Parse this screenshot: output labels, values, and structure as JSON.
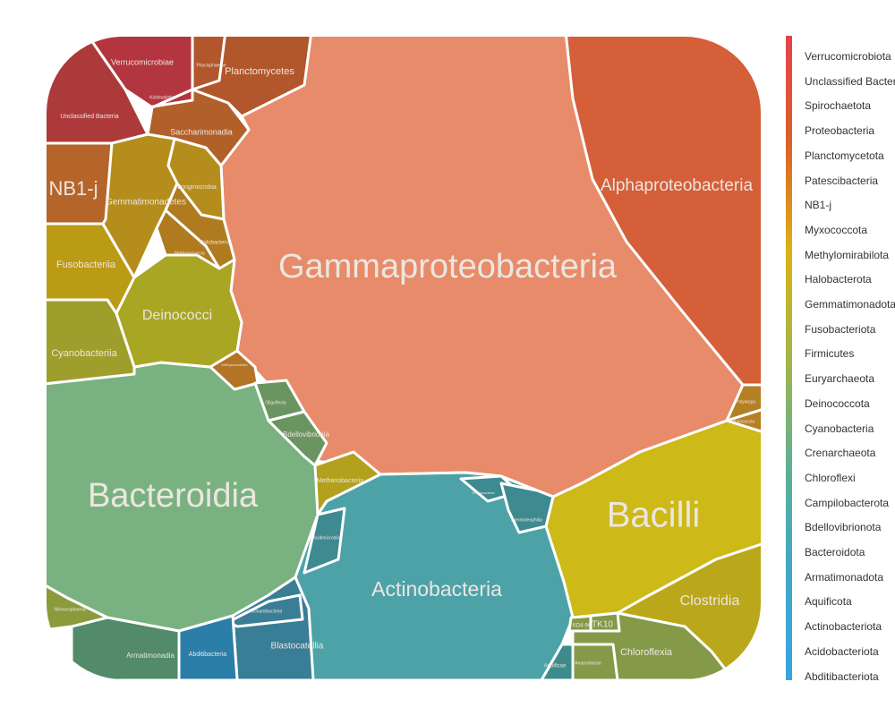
{
  "chart_data": {
    "type": "treemap",
    "hierarchy": "phylum > class",
    "clip_shape": "rounded-rectangle",
    "classes": [
      {
        "name": "Gammaproteobacteria",
        "phylum": "Proteobacteria",
        "color": "#e88b6a"
      },
      {
        "name": "Alphaproteobacteria",
        "phylum": "Proteobacteria",
        "color": "#d45f38"
      },
      {
        "name": "Bacteroidia",
        "phylum": "Bacteroidota",
        "color": "#79b280"
      },
      {
        "name": "Bacilli",
        "phylum": "Firmicutes",
        "color": "#cdb917"
      },
      {
        "name": "Clostridia",
        "phylum": "Firmicutes",
        "color": "#bba71a"
      },
      {
        "name": "Actinobacteria",
        "phylum": "Actinobacteriota",
        "color": "#4da2a8"
      },
      {
        "name": "Deinococci",
        "phylum": "Deinococcota",
        "color": "#a8a622"
      },
      {
        "name": "Cyanobacteriia",
        "phylum": "Cyanobacteria",
        "color": "#9e9e2c"
      },
      {
        "name": "Fusobacteriia",
        "phylum": "Fusobacteriota",
        "color": "#bc9b14"
      },
      {
        "name": "NB1-j",
        "phylum": "NB1-j",
        "color": "#b5642a"
      },
      {
        "name": "Gemmatimonadetes",
        "phylum": "Gemmatimonadota",
        "color": "#b48d1c"
      },
      {
        "name": "Longimicrobia",
        "phylum": "Gemmatimonadota",
        "color": "#b48d1c"
      },
      {
        "name": "Halobacteria",
        "phylum": "Halobacterota",
        "color": "#b07a1f"
      },
      {
        "name": "Methanococcia",
        "phylum": "Halobacterota",
        "color": "#b07a1f"
      },
      {
        "name": "Methylomirabilia",
        "phylum": "Methylomirabilota",
        "color": "#b47325"
      },
      {
        "name": "Saccharimonadia",
        "phylum": "Patescibacteria",
        "color": "#b2602a"
      },
      {
        "name": "Planctomycetes",
        "phylum": "Planctomycetota",
        "color": "#b1572b"
      },
      {
        "name": "Phycisphaerae",
        "phylum": "Planctomycetota",
        "color": "#b1572b"
      },
      {
        "name": "Verrucomicrobiae",
        "phylum": "Verrucomicrobiota",
        "color": "#b23540"
      },
      {
        "name": "Kiritimatiellae",
        "phylum": "Verrucomicrobiota",
        "color": "#b23540"
      },
      {
        "name": "Unclassified Bacteria",
        "phylum": "Unclassified Bacteria",
        "color": "#ad3a3a"
      },
      {
        "name": "Oligoflexia",
        "phylum": "Bdellovibrionota",
        "color": "#6a9560"
      },
      {
        "name": "Bdellovibrionia",
        "phylum": "Bdellovibrionota",
        "color": "#6a9560"
      },
      {
        "name": "Methanobacteria",
        "phylum": "Euryarchaeota",
        "color": "#b3a11e"
      },
      {
        "name": "Polyangia",
        "phylum": "Myxococcota",
        "color": "#b57f25"
      },
      {
        "name": "Myxococcia",
        "phylum": "Myxococcota",
        "color": "#b57f25"
      },
      {
        "name": "Rubrobacteria",
        "phylum": "Actinobacteriota",
        "color": "#3d8a91"
      },
      {
        "name": "Thermoleophilia",
        "phylum": "Actinobacteriota",
        "color": "#3d8a91"
      },
      {
        "name": "Acidimicrobiia",
        "phylum": "Actinobacteriota",
        "color": "#3d8a91"
      },
      {
        "name": "Blastocatellia",
        "phylum": "Acidobacteriota",
        "color": "#3a7d96"
      },
      {
        "name": "Vicinamibacteria",
        "phylum": "Acidobacteriota",
        "color": "#3a7d96"
      },
      {
        "name": "Abditibacteria",
        "phylum": "Abditibacteriota",
        "color": "#2b7ea8"
      },
      {
        "name": "Armatimonadia",
        "phylum": "Armatimonadota",
        "color": "#528a6a"
      },
      {
        "name": "Nitrososphaeria",
        "phylum": "Crenarchaeota",
        "color": "#8b9a3a"
      },
      {
        "name": "Chloroflexia",
        "phylum": "Chloroflexi",
        "color": "#859a48"
      },
      {
        "name": "KD4-96",
        "phylum": "Chloroflexi",
        "color": "#859a48"
      },
      {
        "name": "TK10",
        "phylum": "Chloroflexi",
        "color": "#859a48"
      },
      {
        "name": "Anaerolineae",
        "phylum": "Chloroflexi",
        "color": "#859a48"
      },
      {
        "name": "Aquificae",
        "phylum": "Aquificota",
        "color": "#3e8b8c"
      }
    ],
    "legend": {
      "title": "",
      "placement": "right",
      "type": "colorbar",
      "entries": [
        "Verrucomicrobiota",
        "Unclassified Bacteria",
        "Spirochaetota",
        "Proteobacteria",
        "Planctomycetota",
        "Patescibacteria",
        "NB1-j",
        "Myxococcota",
        "Methylomirabilota",
        "Halobacterota",
        "Gemmatimonadota",
        "Fusobacteriota",
        "Firmicutes",
        "Euryarchaeota",
        "Deinococcota",
        "Cyanobacteria",
        "Crenarchaeota",
        "Chloroflexi",
        "Campilobacterota",
        "Bdellovibrionota",
        "Bacteroidota",
        "Armatimonadota",
        "Aquificota",
        "Actinobacteriota",
        "Acidobacteriota",
        "Abditibacteriota"
      ],
      "gradient_colors": [
        "#e5434b",
        "#d9612a",
        "#dcb215",
        "#a3b54a",
        "#5fb091",
        "#3fa6c9",
        "#3aa4de"
      ]
    }
  }
}
